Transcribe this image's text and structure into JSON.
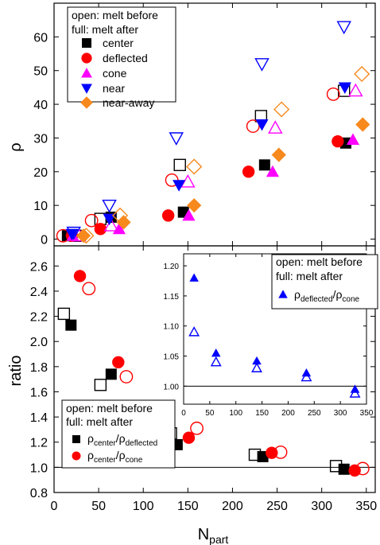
{
  "colors": {
    "center": "#000000",
    "deflected": "#ff0000",
    "cone": "#ff00ff",
    "near": "#0000ff",
    "near-away": "#f7891d",
    "reference_line": "#000000"
  },
  "chart_data": [
    {
      "id": "top",
      "type": "scatter",
      "title": "",
      "xlabel": "",
      "ylabel": "ρ",
      "xlim": [
        0,
        360
      ],
      "ylim": [
        -2,
        70
      ],
      "xticks": [
        0,
        50,
        100,
        150,
        200,
        250,
        300,
        350
      ],
      "yticks": [
        0,
        10,
        20,
        30,
        40,
        50,
        60
      ],
      "ytick_labels": [
        "0",
        "10",
        "20",
        "30",
        "40",
        "50",
        "60"
      ],
      "legend": {
        "position": "top-left",
        "header": [
          "open: melt before",
          "full: melt after"
        ],
        "entries": [
          {
            "key": "center",
            "label": "center",
            "marker": "square"
          },
          {
            "key": "deflected",
            "label": "deflected",
            "marker": "circle"
          },
          {
            "key": "cone",
            "label": "cone",
            "marker": "triangle-up"
          },
          {
            "key": "near",
            "label": "near",
            "marker": "triangle-down"
          },
          {
            "key": "near-away",
            "label": "near-away",
            "marker": "diamond"
          }
        ]
      },
      "series": [
        {
          "key": "center",
          "marker": "square",
          "filled": false,
          "x": [
            24,
            52,
            141,
            232,
            325
          ],
          "y": [
            1,
            6,
            22,
            36.5,
            44
          ]
        },
        {
          "key": "center",
          "marker": "square",
          "filled": true,
          "x": [
            15,
            64,
            145,
            236,
            327
          ],
          "y": [
            1,
            6.5,
            8,
            22,
            28.5
          ]
        },
        {
          "key": "deflected",
          "marker": "circle",
          "filled": false,
          "x": [
            10,
            42,
            132,
            223,
            313
          ],
          "y": [
            1,
            5.5,
            17.5,
            33.5,
            43
          ]
        },
        {
          "key": "deflected",
          "marker": "circle",
          "filled": true,
          "x": [
            20,
            52,
            128,
            218,
            318
          ],
          "y": [
            1,
            3,
            7,
            20,
            29
          ]
        },
        {
          "key": "cone",
          "marker": "triangle-up",
          "filled": false,
          "x": [
            28,
            64,
            150,
            248,
            338
          ],
          "y": [
            1,
            4,
            17,
            33,
            44
          ]
        },
        {
          "key": "cone",
          "marker": "triangle-up",
          "filled": true,
          "x": [
            21,
            73,
            151,
            245,
            335
          ],
          "y": [
            1,
            3,
            7,
            20,
            29.5
          ]
        },
        {
          "key": "near",
          "marker": "triangle-down",
          "filled": false,
          "x": [
            22,
            62,
            137,
            233,
            325
          ],
          "y": [
            2,
            10,
            30,
            52,
            63
          ]
        },
        {
          "key": "near",
          "marker": "triangle-down",
          "filled": true,
          "x": [
            20,
            62,
            140,
            233,
            326
          ],
          "y": [
            1.5,
            6,
            16,
            34,
            45
          ]
        },
        {
          "key": "near-away",
          "marker": "diamond",
          "filled": false,
          "x": [
            36,
            74,
            157,
            255,
            345
          ],
          "y": [
            1,
            7,
            21.5,
            38.5,
            49
          ]
        },
        {
          "key": "near-away",
          "marker": "diamond",
          "filled": true,
          "x": [
            33,
            78,
            157,
            252,
            346
          ],
          "y": [
            1,
            5,
            10,
            25,
            34
          ]
        }
      ]
    },
    {
      "id": "bottom",
      "type": "scatter",
      "title": "",
      "xlabel": "N_part",
      "ylabel": "ratio",
      "xlim": [
        0,
        360
      ],
      "ylim": [
        0.8,
        2.76
      ],
      "xticks": [
        0,
        50,
        100,
        150,
        200,
        250,
        300,
        350
      ],
      "xtick_labels": [
        "0",
        "50",
        "100",
        "150",
        "200",
        "250",
        "300",
        "350"
      ],
      "yticks": [
        0.8,
        1.0,
        1.2,
        1.4,
        1.6,
        1.8,
        2.0,
        2.2,
        2.4,
        2.6
      ],
      "ytick_labels": [
        "0.8",
        "1.0",
        "1.2",
        "1.4",
        "1.6",
        "1.8",
        "2.0",
        "2.2",
        "2.4",
        "2.6"
      ],
      "reference_line_y": 1.0,
      "legend": {
        "position": "bottom-left",
        "header": [
          "open: melt before",
          "full: melt after"
        ],
        "entries": [
          {
            "key": "center",
            "marker": "square",
            "label_base": "ρ",
            "label_sub": "center",
            "label_sep": "/ρ",
            "label_sub2": "deflected"
          },
          {
            "key": "deflected",
            "marker": "circle",
            "label_base": "ρ",
            "label_sub": "center",
            "label_sep": "/ρ",
            "label_sub2": "cone"
          }
        ]
      },
      "series": [
        {
          "key": "center",
          "marker": "square",
          "filled": false,
          "x": [
            11,
            52,
            131,
            225,
            316
          ],
          "y": [
            2.22,
            1.655,
            1.27,
            1.1,
            1.01
          ]
        },
        {
          "key": "center",
          "marker": "square",
          "filled": true,
          "x": [
            19,
            64,
            138,
            234,
            325
          ],
          "y": [
            2.13,
            1.74,
            1.18,
            1.085,
            0.985
          ]
        },
        {
          "key": "deflected",
          "marker": "circle",
          "filled": false,
          "x": [
            39,
            81,
            160,
            254,
            346
          ],
          "y": [
            2.42,
            1.72,
            1.31,
            1.12,
            0.99
          ]
        },
        {
          "key": "deflected",
          "marker": "circle",
          "filled": true,
          "x": [
            29,
            72,
            151,
            244,
            337
          ],
          "y": [
            2.52,
            1.835,
            1.235,
            1.115,
            0.975
          ]
        }
      ]
    },
    {
      "id": "inset",
      "type": "scatter",
      "title": "",
      "xlabel": "",
      "ylabel": "",
      "xlim": [
        0,
        350
      ],
      "ylim": [
        0.97,
        1.22
      ],
      "xticks": [
        0,
        50,
        100,
        150,
        200,
        250,
        300,
        350
      ],
      "xtick_labels": [
        "0",
        "50",
        "100",
        "150",
        "200",
        "250",
        "300",
        "350"
      ],
      "yticks": [
        1.0,
        1.05,
        1.1,
        1.15,
        1.2
      ],
      "ytick_labels": [
        "1.00",
        "1.05",
        "1.10",
        "1.15",
        "1.20"
      ],
      "reference_line_y": 1.0,
      "legend": {
        "position": "top-right",
        "header": [
          "open: melt before",
          "full: melt after"
        ],
        "entries": [
          {
            "key": "near",
            "marker": "triangle-up",
            "label_base": "ρ",
            "label_sub": "deflected",
            "label_sep": "/ρ",
            "label_sub2": "cone"
          }
        ]
      },
      "series": [
        {
          "key": "near",
          "marker": "triangle-up",
          "filled": false,
          "x": [
            20,
            62,
            140,
            235,
            328
          ],
          "y": [
            1.09,
            1.04,
            1.03,
            1.015,
            0.988
          ]
        },
        {
          "key": "near",
          "marker": "triangle-up",
          "filled": true,
          "x": [
            20,
            62,
            140,
            235,
            328
          ],
          "y": [
            1.18,
            1.055,
            1.042,
            1.022,
            0.995
          ]
        }
      ]
    }
  ]
}
